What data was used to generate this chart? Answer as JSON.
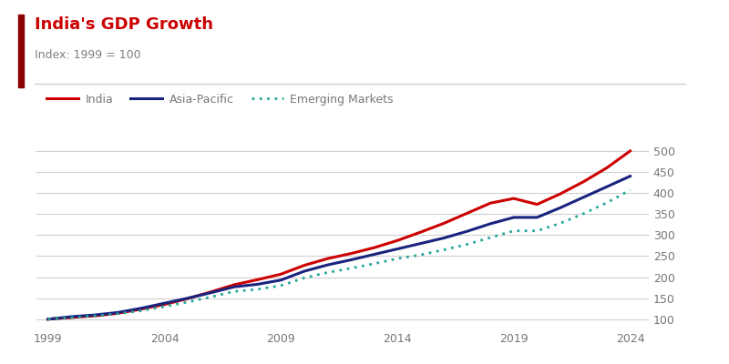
{
  "title": "India's GDP Growth",
  "subtitle": "Index: 1999 = 100",
  "title_color": "#cc0000",
  "subtitle_color": "#808080",
  "accent_bar_color": "#8b0000",
  "background_color": "#ffffff",
  "years": [
    1999,
    2000,
    2001,
    2002,
    2003,
    2004,
    2005,
    2006,
    2007,
    2008,
    2009,
    2010,
    2011,
    2012,
    2013,
    2014,
    2015,
    2016,
    2017,
    2018,
    2019,
    2020,
    2021,
    2022,
    2023,
    2024
  ],
  "india": [
    100,
    104,
    108,
    114,
    124,
    135,
    149,
    165,
    182,
    194,
    207,
    228,
    244,
    256,
    270,
    287,
    307,
    328,
    352,
    376,
    387,
    373,
    398,
    427,
    460,
    500
  ],
  "asia_pacific": [
    100,
    106,
    110,
    116,
    126,
    138,
    150,
    163,
    177,
    183,
    193,
    214,
    229,
    241,
    254,
    267,
    280,
    293,
    309,
    327,
    342,
    342,
    365,
    390,
    415,
    440
  ],
  "emerging_markets": [
    100,
    104,
    108,
    113,
    120,
    130,
    141,
    153,
    166,
    171,
    180,
    198,
    211,
    221,
    232,
    244,
    253,
    265,
    278,
    294,
    310,
    310,
    328,
    351,
    377,
    407
  ],
  "india_color": "#cc0000",
  "asia_pacific_color": "#1a237e",
  "emerging_markets_color": "#26a69a",
  "ylim": [
    80,
    530
  ],
  "yticks": [
    100,
    150,
    200,
    250,
    300,
    350,
    400,
    450,
    500
  ],
  "xticks": [
    1999,
    2004,
    2009,
    2014,
    2019,
    2024
  ],
  "legend_labels": [
    "India",
    "Asia-Pacific",
    "Emerging Markets"
  ],
  "grid_color": "#d0d0d0",
  "tick_color": "#777777"
}
